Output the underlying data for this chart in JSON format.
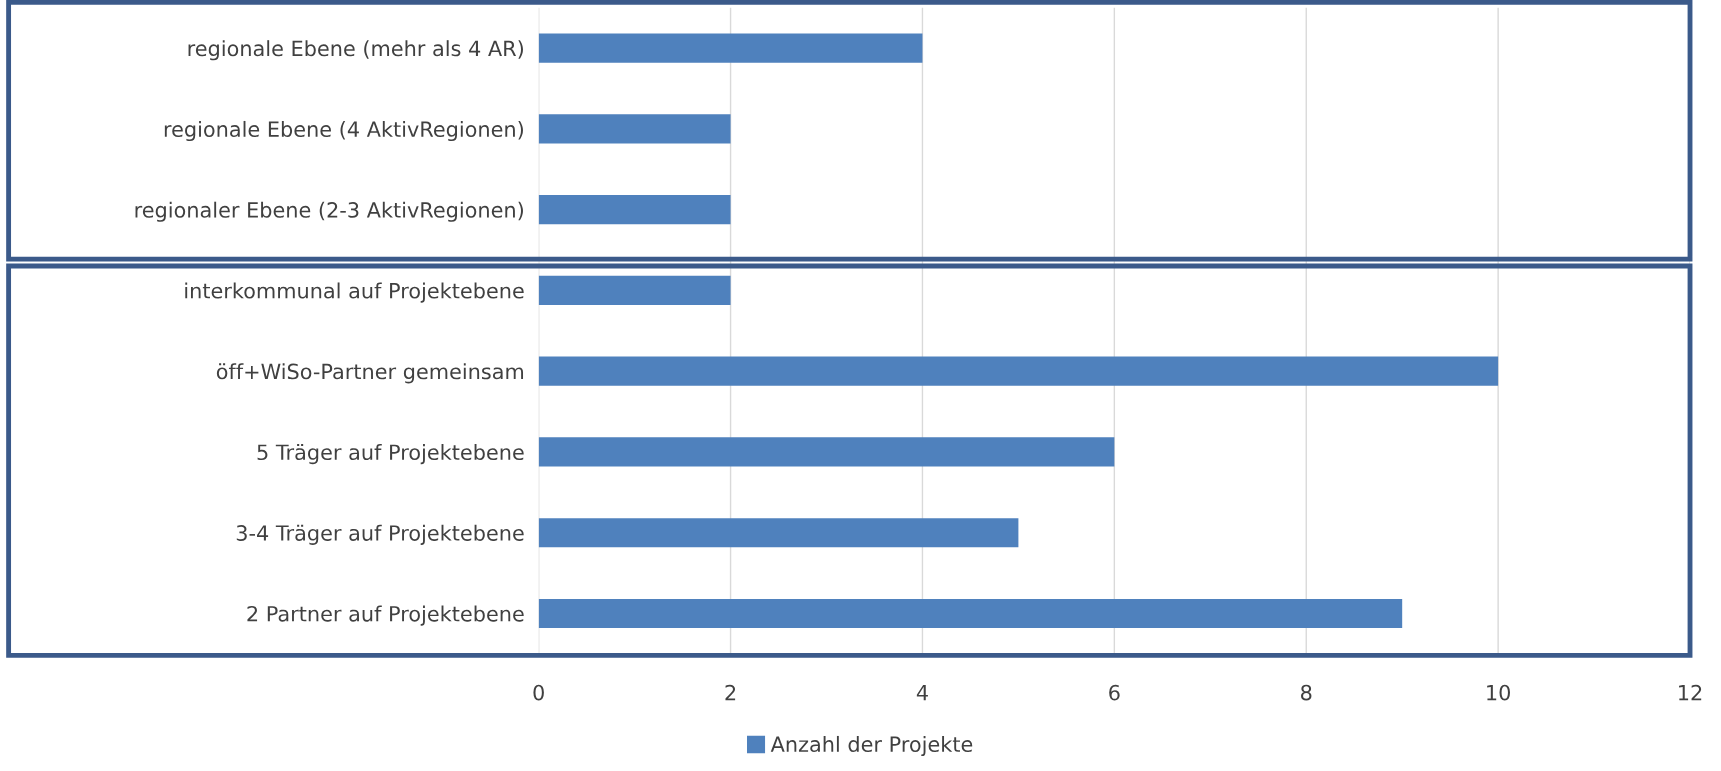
{
  "chart_data": {
    "type": "bar",
    "orientation": "horizontal",
    "categories": [
      "regionale Ebene (mehr als 4 AR)",
      "regionale Ebene (4 AktivRegionen)",
      "regionaler Ebene (2-3 AktivRegionen)",
      "interkommunal auf Projektebene",
      "öff+WiSo-Partner gemeinsam",
      "5 Träger auf Projektebene",
      "3-4 Träger auf Projektebene",
      "2 Partner auf Projektebene"
    ],
    "series": [
      {
        "name": "Anzahl der Projekte",
        "color": "#4f81bd",
        "values": [
          4,
          2,
          2,
          2,
          10,
          6,
          5,
          9
        ]
      }
    ],
    "xlim": [
      0,
      12
    ],
    "xticks": [
      0,
      2,
      4,
      6,
      8,
      10,
      12
    ],
    "grid": "x",
    "legend": "bottom"
  }
}
